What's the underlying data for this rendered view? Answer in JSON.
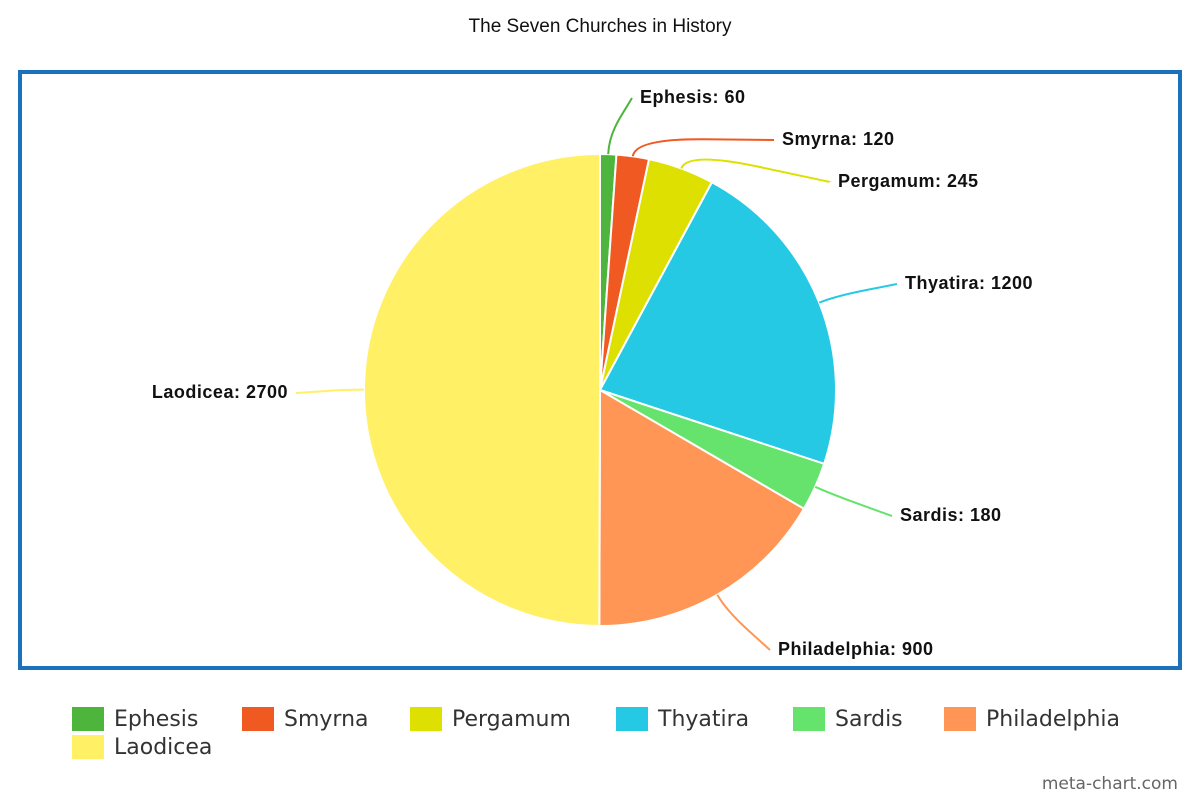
{
  "chart_data": {
    "type": "pie",
    "title": "The Seven Churches in History",
    "categories": [
      "Ephesis",
      "Smyrna",
      "Pergamum",
      "Thyatira",
      "Sardis",
      "Philadelphia",
      "Laodicea"
    ],
    "values": [
      60,
      120,
      245,
      1200,
      180,
      900,
      2700
    ],
    "value_labels": [
      "Ephesis: 60",
      "Smyrna: 120",
      "Pergamum: 245",
      "Thyatira: 1200",
      "Sardis: 180",
      "Philadelphia: 900",
      "Laodicea: 2700"
    ],
    "colors": [
      "#4db53c",
      "#f05a22",
      "#dde000",
      "#26c9e3",
      "#66e36c",
      "#ff9655",
      "#fff066"
    ],
    "legend": "bottom",
    "credit": "meta-chart.com"
  }
}
